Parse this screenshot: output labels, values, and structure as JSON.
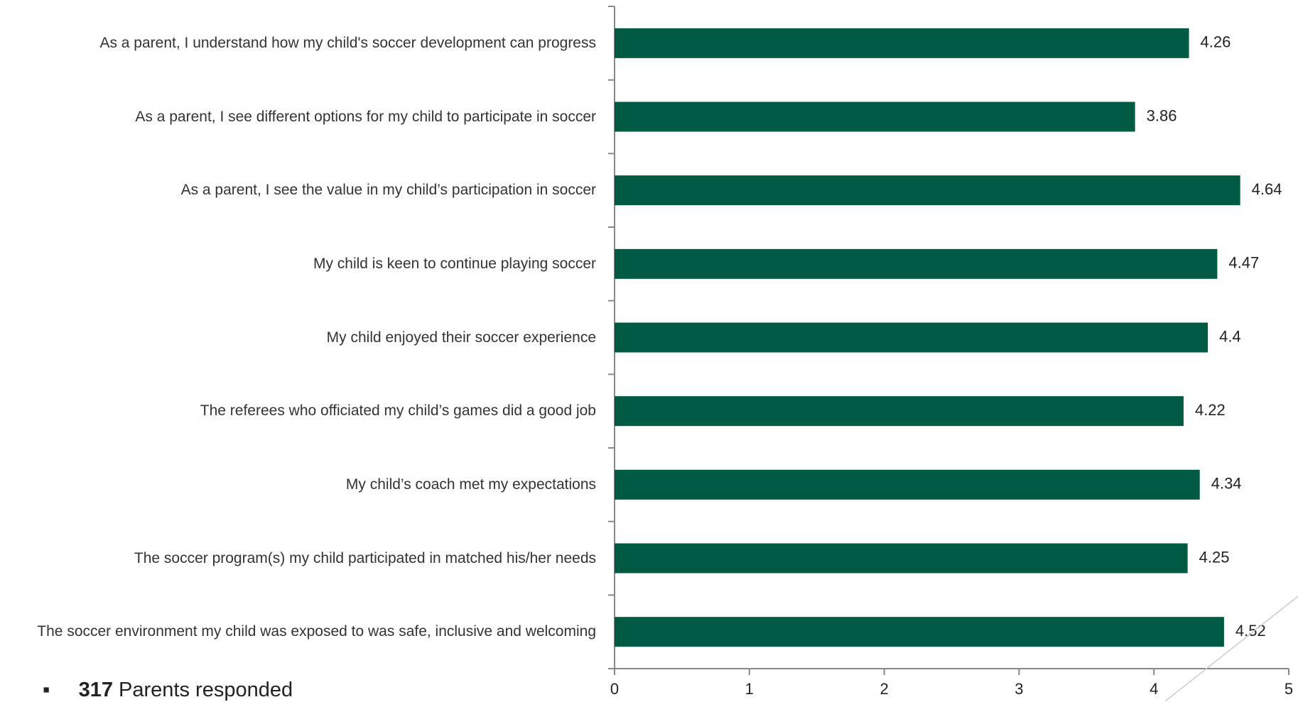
{
  "chart_data": {
    "type": "barh",
    "categories": [
      "As a parent, I understand how my child's soccer development can progress",
      "As a parent, I see different options for my child to participate in soccer",
      "As a parent, I see the value in my child’s participation in soccer",
      "My child is keen to continue playing soccer",
      "My child enjoyed their soccer experience",
      "The referees who officiated my child’s games did a good job",
      "My child’s coach met my expectations",
      "The soccer program(s) my child participated in matched his/her needs",
      "The soccer environment my child was exposed to was safe, inclusive and welcoming"
    ],
    "values": [
      4.26,
      3.86,
      4.64,
      4.47,
      4.4,
      4.22,
      4.34,
      4.25,
      4.52
    ],
    "color": "#005a43",
    "xlim": [
      0,
      5
    ],
    "xticks": [
      0,
      1,
      2,
      3,
      4,
      5
    ]
  },
  "note": {
    "count": "317",
    "text": "Parents responded"
  }
}
